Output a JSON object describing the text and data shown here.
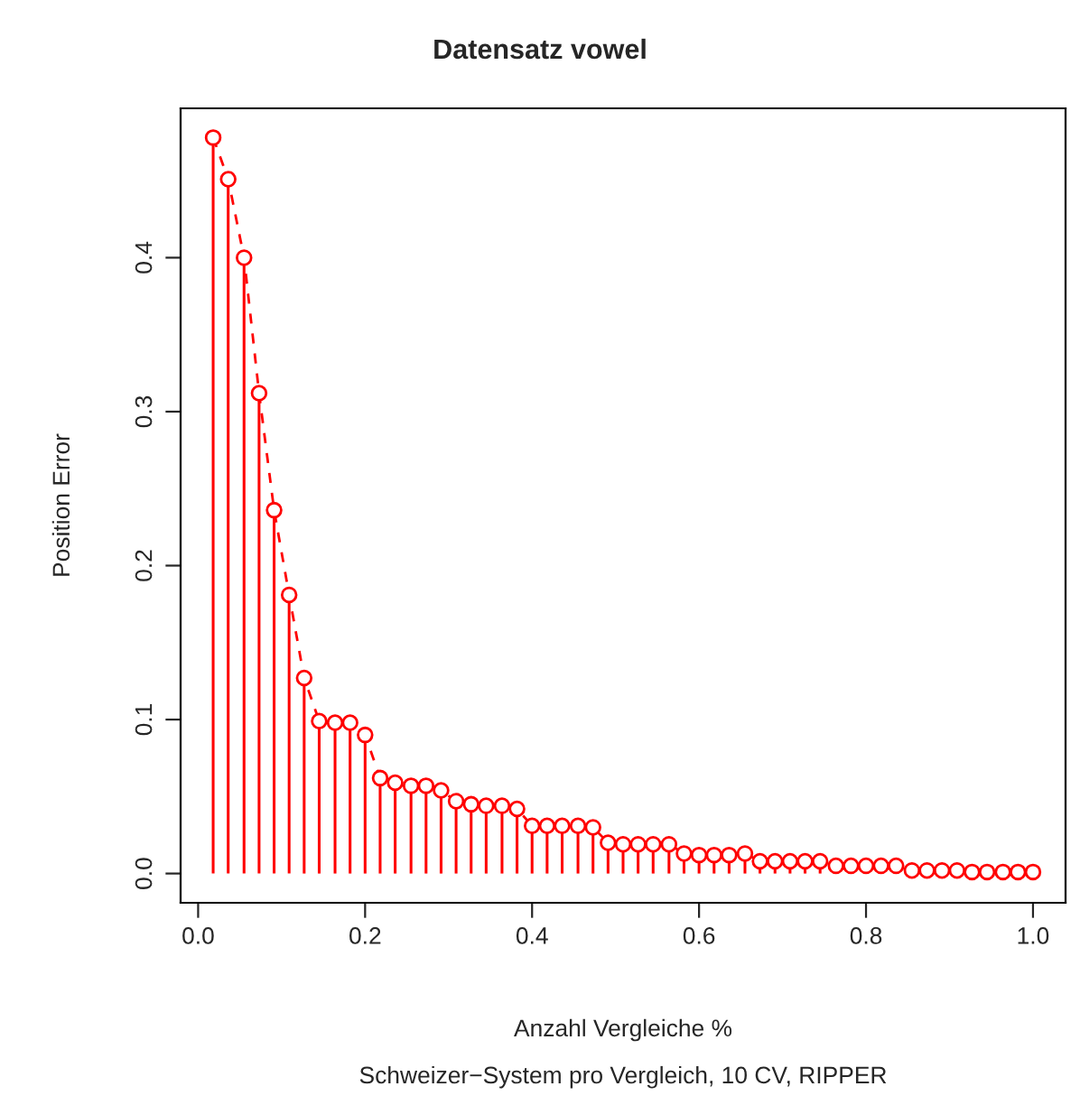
{
  "chart_data": {
    "type": "lollipop",
    "title": "Datensatz vowel",
    "subtitle": "Schweizer−System pro Vergleich, 10 CV, RIPPER",
    "xlabel": "Anzahl Vergleiche %",
    "ylabel": "Position Error",
    "x": [
      0.018,
      0.036,
      0.055,
      0.073,
      0.091,
      0.109,
      0.127,
      0.145,
      0.164,
      0.182,
      0.2,
      0.218,
      0.236,
      0.255,
      0.273,
      0.291,
      0.309,
      0.327,
      0.345,
      0.364,
      0.382,
      0.4,
      0.418,
      0.436,
      0.455,
      0.473,
      0.491,
      0.509,
      0.527,
      0.545,
      0.564,
      0.582,
      0.6,
      0.618,
      0.636,
      0.655,
      0.673,
      0.691,
      0.709,
      0.727,
      0.745,
      0.764,
      0.782,
      0.8,
      0.818,
      0.836,
      0.855,
      0.873,
      0.891,
      0.909,
      0.927,
      0.945,
      0.964,
      0.982,
      1.0
    ],
    "series": [
      {
        "color": "#ff0000",
        "marker": "circle",
        "values": [
          0.478,
          0.451,
          0.4,
          0.312,
          0.236,
          0.181,
          0.127,
          0.099,
          0.098,
          0.098,
          0.09,
          0.062,
          0.059,
          0.057,
          0.057,
          0.054,
          0.047,
          0.045,
          0.044,
          0.044,
          0.042,
          0.031,
          0.031,
          0.031,
          0.031,
          0.03,
          0.02,
          0.019,
          0.019,
          0.019,
          0.019,
          0.013,
          0.012,
          0.012,
          0.012,
          0.013,
          0.008,
          0.008,
          0.008,
          0.008,
          0.008,
          0.005,
          0.005,
          0.005,
          0.005,
          0.005,
          0.002,
          0.002,
          0.002,
          0.002,
          0.001,
          0.001,
          0.001,
          0.001,
          0.001
        ]
      },
      {
        "type": "line",
        "color": "#ff0000",
        "line_style": "dashed",
        "values": [
          0.478,
          0.451,
          0.4,
          0.312,
          0.236,
          0.181,
          0.127,
          0.099,
          0.098,
          0.098,
          0.09,
          0.062,
          0.059,
          0.057,
          0.057,
          0.054,
          0.047,
          0.045,
          0.044,
          0.044,
          0.042,
          0.031,
          0.031,
          0.031,
          0.031,
          0.03,
          0.02,
          0.019,
          0.019,
          0.019,
          0.019,
          0.013,
          0.012,
          0.012,
          0.012,
          0.013,
          0.008,
          0.008,
          0.008,
          0.008,
          0.008,
          0.005,
          0.005,
          0.005,
          0.005,
          0.005,
          0.002,
          0.002,
          0.002,
          0.002,
          0.001,
          0.001,
          0.001,
          0.001,
          0.001
        ]
      }
    ],
    "xlim": [
      -0.021,
      1.039
    ],
    "ylim": [
      -0.019,
      0.497
    ],
    "xticks": [
      {
        "value": 0,
        "label": "0.0"
      },
      0.2,
      0.4,
      0.6,
      0.8,
      {
        "value": 1,
        "label": "1.0"
      }
    ],
    "yticks": [
      {
        "value": 0,
        "label": "0.0"
      },
      0.1,
      0.2,
      0.3,
      0.4
    ],
    "grid": false,
    "legend": false
  }
}
